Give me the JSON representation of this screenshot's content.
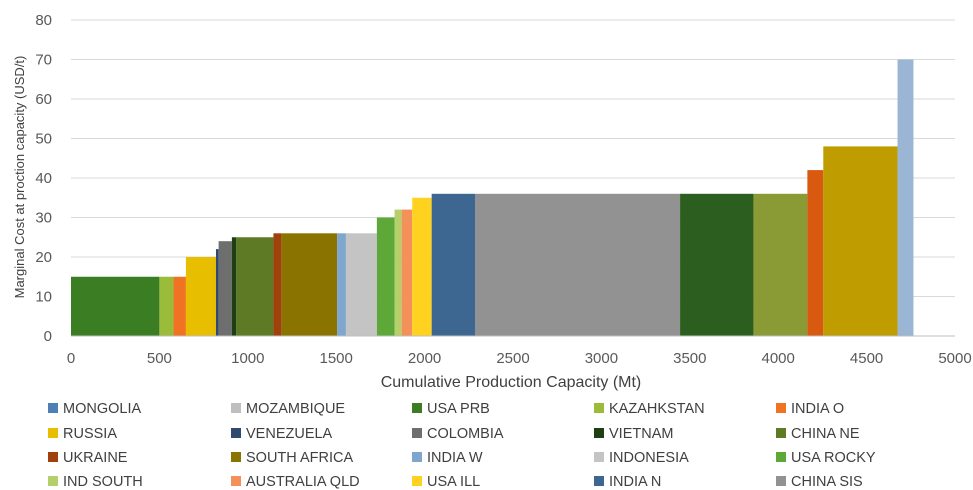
{
  "chart_data": {
    "type": "bar",
    "title": "",
    "xlabel": "Cumulative Production Capacity (Mt)",
    "ylabel": "Marginal Cost at proction capacity (USD/t)",
    "xlim": [
      0,
      5000
    ],
    "ylim": [
      0,
      80
    ],
    "xticks": [
      0,
      500,
      1000,
      1500,
      2000,
      2500,
      3000,
      3500,
      4000,
      4500,
      5000
    ],
    "yticks": [
      0,
      10,
      20,
      30,
      40,
      50,
      60,
      70,
      80
    ],
    "grid": "horizontal",
    "legend_position": "bottom",
    "legend": [
      {
        "name": "MONGOLIA",
        "color": "#4e7fb5"
      },
      {
        "name": "MOZAMBIQUE",
        "color": "#bfbfbf"
      },
      {
        "name": "USA PRB",
        "color": "#3a7d22"
      },
      {
        "name": "KAZAHKSTAN",
        "color": "#9bbb3a"
      },
      {
        "name": "INDIA O",
        "color": "#f07223"
      },
      {
        "name": "RUSSIA",
        "color": "#e8be00"
      },
      {
        "name": "VENEZUELA",
        "color": "#2e4a6e"
      },
      {
        "name": "COLOMBIA",
        "color": "#6e6e6e"
      },
      {
        "name": "VIETNAM",
        "color": "#1e3f12"
      },
      {
        "name": "CHINA NE",
        "color": "#5e7a25"
      },
      {
        "name": "UKRAINE",
        "color": "#a0400d"
      },
      {
        "name": "SOUTH AFRICA",
        "color": "#8b7300"
      },
      {
        "name": "INDIA W",
        "color": "#7fa6cf"
      },
      {
        "name": "INDONESIA",
        "color": "#c4c4c4"
      },
      {
        "name": "USA ROCKY",
        "color": "#5ea83a"
      },
      {
        "name": "IND SOUTH",
        "color": "#b5cf6b"
      },
      {
        "name": "AUSTRALIA QLD",
        "color": "#f4915a"
      },
      {
        "name": "USA ILL",
        "color": "#ffd21f"
      },
      {
        "name": "INDIA N",
        "color": "#3d6690"
      },
      {
        "name": "CHINA SIS",
        "color": "#929292"
      }
    ],
    "segments": [
      {
        "x0": 0,
        "x1": 500,
        "y": 15,
        "color": "#3a7d22"
      },
      {
        "x0": 500,
        "x1": 580,
        "y": 15,
        "color": "#9bbb3a"
      },
      {
        "x0": 580,
        "x1": 650,
        "y": 15,
        "color": "#f07223"
      },
      {
        "x0": 650,
        "x1": 820,
        "y": 20,
        "color": "#e8be00"
      },
      {
        "x0": 820,
        "x1": 835,
        "y": 22,
        "color": "#2e4a6e"
      },
      {
        "x0": 835,
        "x1": 910,
        "y": 24,
        "color": "#6e6e6e"
      },
      {
        "x0": 910,
        "x1": 935,
        "y": 25,
        "color": "#1e3f12"
      },
      {
        "x0": 935,
        "x1": 1145,
        "y": 25,
        "color": "#5e7a25"
      },
      {
        "x0": 1145,
        "x1": 1190,
        "y": 26,
        "color": "#a0400d"
      },
      {
        "x0": 1190,
        "x1": 1505,
        "y": 26,
        "color": "#8b7300"
      },
      {
        "x0": 1505,
        "x1": 1555,
        "y": 26,
        "color": "#7fa6cf"
      },
      {
        "x0": 1555,
        "x1": 1730,
        "y": 26,
        "color": "#c4c4c4"
      },
      {
        "x0": 1730,
        "x1": 1830,
        "y": 30,
        "color": "#5ea83a"
      },
      {
        "x0": 1830,
        "x1": 1870,
        "y": 32,
        "color": "#b5cf6b"
      },
      {
        "x0": 1870,
        "x1": 1930,
        "y": 32,
        "color": "#f4915a"
      },
      {
        "x0": 1930,
        "x1": 2040,
        "y": 35,
        "color": "#ffd21f"
      },
      {
        "x0": 2040,
        "x1": 2285,
        "y": 36,
        "color": "#3d6690"
      },
      {
        "x0": 2285,
        "x1": 3445,
        "y": 36,
        "color": "#929292"
      },
      {
        "x0": 3445,
        "x1": 3860,
        "y": 36,
        "color": "#2c5f1f"
      },
      {
        "x0": 3860,
        "x1": 4165,
        "y": 36,
        "color": "#8a9a35"
      },
      {
        "x0": 4165,
        "x1": 4255,
        "y": 42,
        "color": "#d85a10"
      },
      {
        "x0": 4255,
        "x1": 4675,
        "y": 48,
        "color": "#bf9d00"
      },
      {
        "x0": 4675,
        "x1": 4765,
        "y": 70,
        "color": "#9ab6d4"
      }
    ]
  }
}
